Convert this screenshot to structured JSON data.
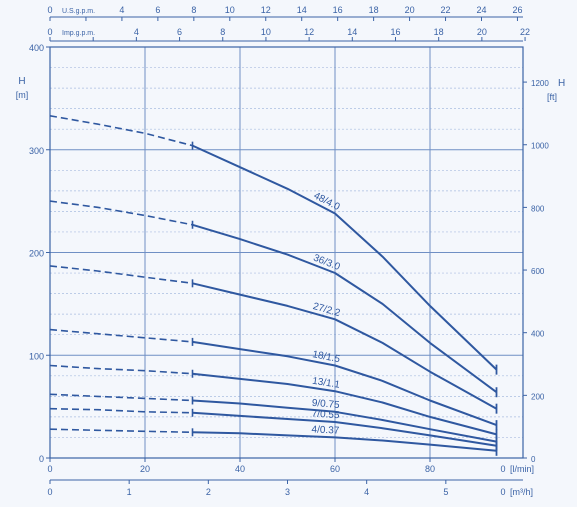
{
  "colors": {
    "ink": "#3b63a6",
    "grid_major": "#6f8fc4",
    "grid_minor": "#a9bde0",
    "curve": "#2f58a0",
    "background": "#f4f7fc"
  },
  "chart_data": {
    "type": "line",
    "y_axis_left": {
      "label": "H",
      "unit": "[m]",
      "ylim": [
        0,
        400
      ],
      "ticks": [
        "0",
        "100",
        "200",
        "300",
        "400"
      ]
    },
    "y_axis_right": {
      "label": "H",
      "unit": "[ft]",
      "ylim": [
        0,
        1312
      ],
      "ticks": [
        "0",
        "200",
        "400",
        "600",
        "800",
        "1000",
        "1200"
      ]
    },
    "x_axis_main": {
      "unit": "[l/min]",
      "xlim": [
        0,
        94
      ],
      "ticks": [
        "0",
        "20",
        "40",
        "60",
        "80"
      ],
      "end_label": "0"
    },
    "x_axis_m3h": {
      "unit": "[m³/h]",
      "ticks": [
        "0",
        "1",
        "2",
        "3",
        "4",
        "5"
      ],
      "end_label": "0"
    },
    "x_axis_usgpm": {
      "label": "U.S.g.p.m.",
      "ticks": [
        "0",
        "2",
        "4",
        "6",
        "8",
        "10",
        "12",
        "14",
        "16",
        "18",
        "20",
        "22",
        "24",
        "26"
      ]
    },
    "x_axis_impgpm": {
      "label": "Imp.g.p.m.",
      "ticks": [
        "0",
        "2",
        "4",
        "6",
        "8",
        "10",
        "12",
        "14",
        "16",
        "18",
        "20",
        "22"
      ]
    },
    "operating_start_lpm": 30,
    "series": [
      {
        "name": "48/4.0",
        "x": [
          0,
          10,
          20,
          30,
          40,
          50,
          60,
          70,
          80,
          94
        ],
        "y": [
          333,
          325,
          316,
          304,
          283,
          262,
          238,
          196,
          148,
          86
        ]
      },
      {
        "name": "36/3.0",
        "x": [
          0,
          10,
          20,
          30,
          40,
          50,
          60,
          70,
          80,
          94
        ],
        "y": [
          250,
          244,
          236,
          227,
          213,
          198,
          180,
          150,
          112,
          64
        ]
      },
      {
        "name": "27/2.2",
        "x": [
          0,
          10,
          20,
          30,
          40,
          50,
          60,
          70,
          80,
          94
        ],
        "y": [
          187,
          182,
          176,
          170,
          159,
          148,
          135,
          112,
          84,
          48
        ]
      },
      {
        "name": "18/1.5",
        "x": [
          0,
          10,
          20,
          30,
          40,
          50,
          60,
          70,
          80,
          94
        ],
        "y": [
          125,
          121,
          117,
          113,
          106,
          99,
          90,
          75,
          56,
          32
        ]
      },
      {
        "name": "13/1.1",
        "x": [
          0,
          10,
          20,
          30,
          40,
          50,
          60,
          70,
          80,
          94
        ],
        "y": [
          90,
          87,
          85,
          82,
          77,
          72,
          65,
          54,
          40,
          23
        ]
      },
      {
        "name": "9/0.75",
        "x": [
          0,
          10,
          20,
          30,
          40,
          50,
          60,
          70,
          80,
          94
        ],
        "y": [
          62,
          60,
          58,
          56,
          53,
          49,
          45,
          37,
          28,
          16
        ]
      },
      {
        "name": "7/0.55",
        "x": [
          0,
          10,
          20,
          30,
          40,
          50,
          60,
          70,
          80,
          94
        ],
        "y": [
          48,
          47,
          45,
          44,
          41,
          38,
          35,
          29,
          22,
          12
        ]
      },
      {
        "name": "4/0.37",
        "x": [
          0,
          10,
          20,
          30,
          40,
          50,
          60,
          70,
          80,
          94
        ],
        "y": [
          28,
          27,
          26,
          25,
          24,
          22,
          20,
          17,
          13,
          7
        ]
      }
    ]
  }
}
